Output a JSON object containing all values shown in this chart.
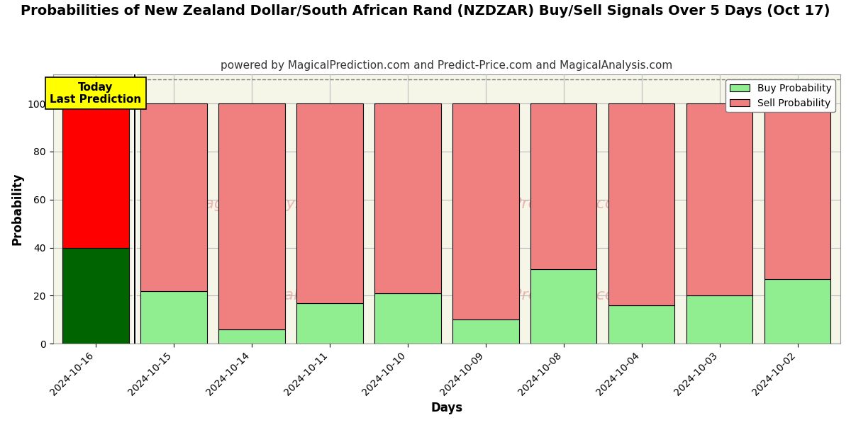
{
  "title": "Probabilities of New Zealand Dollar/South African Rand (NZDZAR) Buy/Sell Signals Over 5 Days (Oct 17)",
  "subtitle": "powered by MagicalPrediction.com and Predict-Price.com and MagicalAnalysis.com",
  "xlabel": "Days",
  "ylabel": "Probability",
  "dates": [
    "2024-10-16",
    "2024-10-15",
    "2024-10-14",
    "2024-10-11",
    "2024-10-10",
    "2024-10-09",
    "2024-10-08",
    "2024-10-04",
    "2024-10-03",
    "2024-10-02"
  ],
  "buy_values": [
    40,
    22,
    6,
    17,
    21,
    10,
    31,
    16,
    20,
    27
  ],
  "sell_values": [
    60,
    78,
    94,
    83,
    79,
    90,
    69,
    84,
    80,
    73
  ],
  "today_bar_buy_color": "#006400",
  "today_bar_sell_color": "#FF0000",
  "other_bar_buy_color": "#90EE90",
  "other_bar_sell_color": "#F08080",
  "today_label_bg": "#FFFF00",
  "today_label_text": "Today\nLast Prediction",
  "legend_buy_label": "Buy Probability",
  "legend_sell_label": "Sell Probability",
  "ylim": [
    0,
    112
  ],
  "yticks": [
    0,
    20,
    40,
    60,
    80,
    100
  ],
  "dashed_line_y": 110,
  "bar_width": 0.85,
  "figsize": [
    12,
    6
  ],
  "dpi": 100,
  "title_fontsize": 14,
  "subtitle_fontsize": 11,
  "axis_label_fontsize": 12,
  "tick_fontsize": 10,
  "legend_fontsize": 10,
  "today_label_fontsize": 11,
  "bg_color": "#FFFFFF",
  "plot_bg_color": "#F5F5E8",
  "grid_color": "#BBBBBB",
  "bar_edge_color": "#000000"
}
